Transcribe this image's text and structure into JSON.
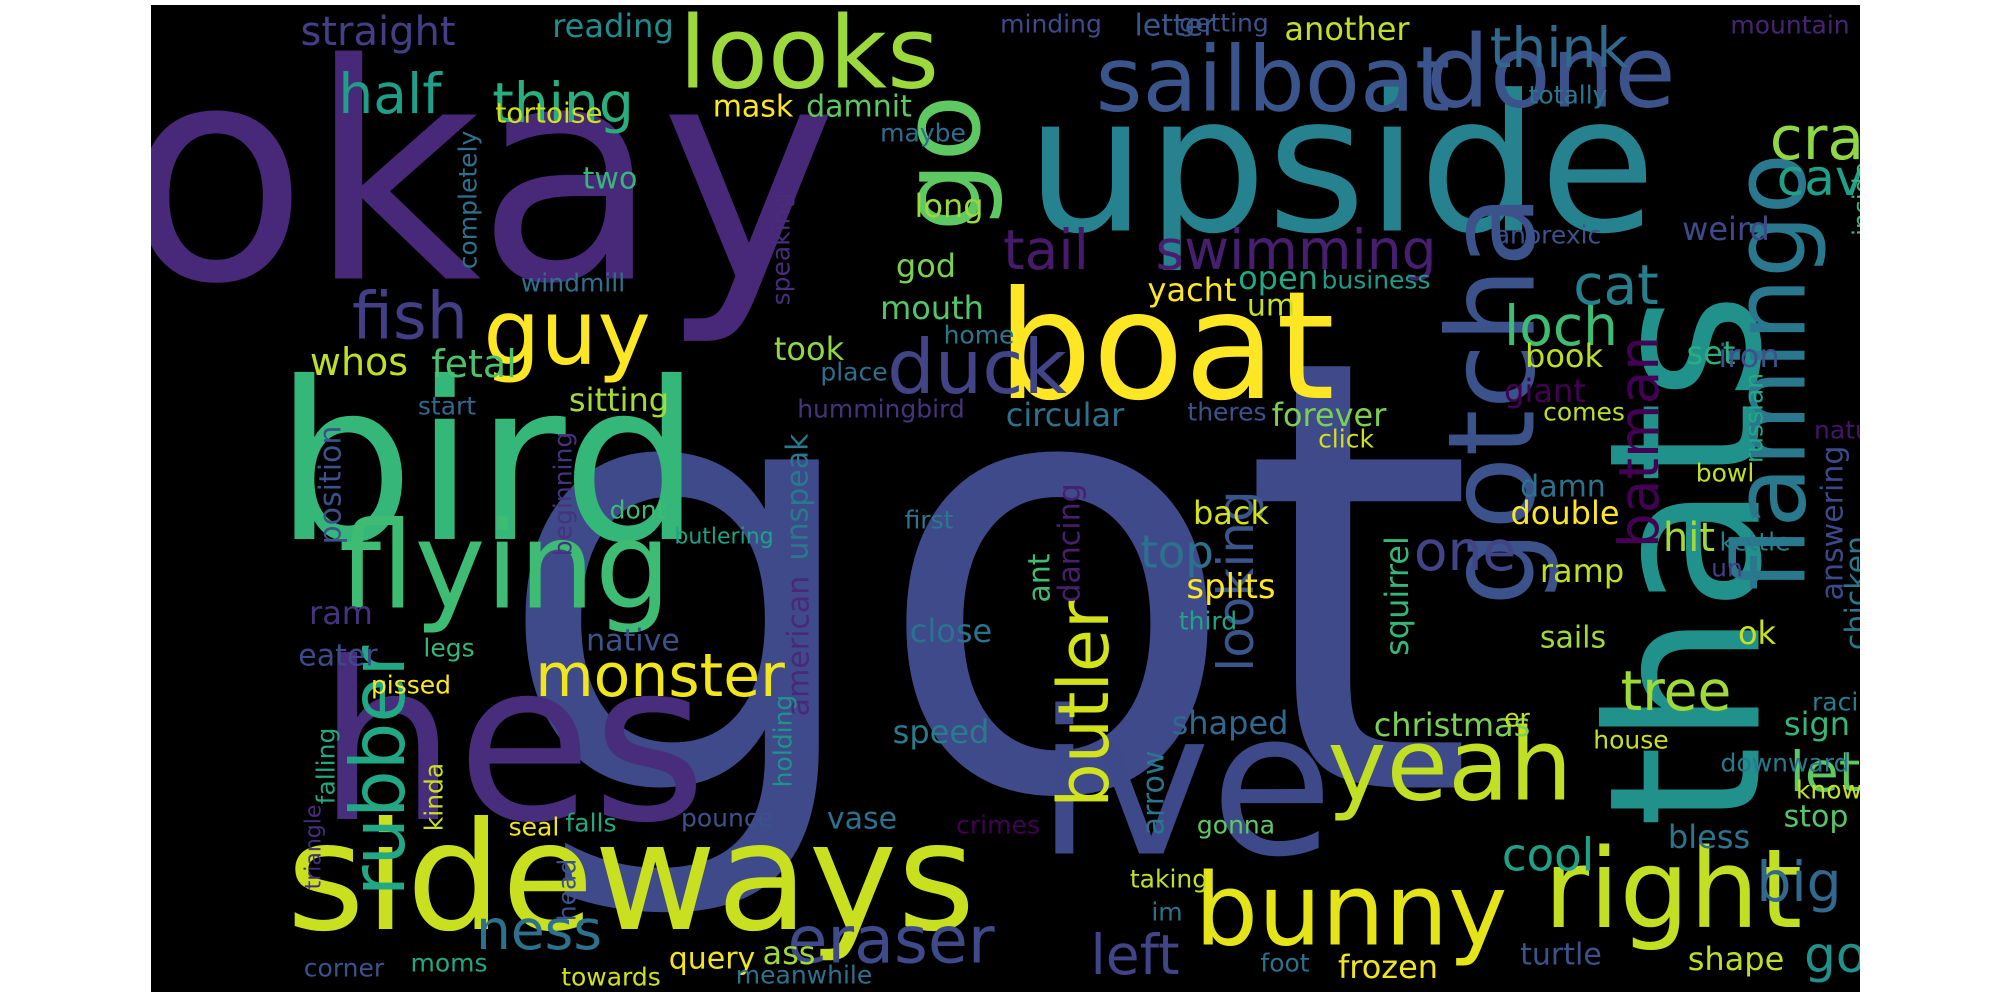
{
  "words": [
    {
      "text": "got",
      "color": "#3e4a89"
    },
    {
      "text": "okay",
      "color": "#482878"
    },
    {
      "text": "upside",
      "color": "#26828e"
    },
    {
      "text": "bird",
      "color": "#35b779"
    },
    {
      "text": "hes",
      "color": "#472d7b"
    },
    {
      "text": "thats",
      "color": "#21918c"
    },
    {
      "text": "ive",
      "color": "#3e4989"
    },
    {
      "text": "sideways",
      "color": "#c8e020"
    },
    {
      "text": "boat",
      "color": "#fde725"
    },
    {
      "text": "flying",
      "color": "#3fbc73"
    },
    {
      "text": "go",
      "color": "#5ec962"
    },
    {
      "text": "gotcha",
      "color": "#3b528b"
    },
    {
      "text": "right",
      "color": "#c2df23"
    },
    {
      "text": "bunny",
      "color": "#e5e419"
    },
    {
      "text": "yeah",
      "color": "#c0df25"
    },
    {
      "text": "looks",
      "color": "#9bd93c"
    },
    {
      "text": "flamingo",
      "color": "#2a788e"
    },
    {
      "text": "sailboat",
      "color": "#3a548c"
    },
    {
      "text": "done",
      "color": "#3b528b"
    },
    {
      "text": "guy",
      "color": "#fde725"
    },
    {
      "text": "duck",
      "color": "#414487"
    },
    {
      "text": "monster",
      "color": "#f1e51d"
    },
    {
      "text": "swimming",
      "color": "#481f70"
    },
    {
      "text": "tail",
      "color": "#481a6c"
    },
    {
      "text": "rubber",
      "color": "#22a884"
    },
    {
      "text": "butler",
      "color": "#d2e21b"
    },
    {
      "text": "eraser",
      "color": "#3e4a89"
    },
    {
      "text": "fish",
      "color": "#433e85"
    },
    {
      "text": "crab",
      "color": "#8fd744"
    },
    {
      "text": "think",
      "color": "#31688e"
    },
    {
      "text": "thing",
      "color": "#29af7f"
    },
    {
      "text": "half",
      "color": "#1f9e89"
    },
    {
      "text": "loch",
      "color": "#3fbc73"
    },
    {
      "text": "cat",
      "color": "#277f8e"
    },
    {
      "text": "batman",
      "color": "#440154"
    },
    {
      "text": "cave",
      "color": "#1fa088"
    },
    {
      "text": "looking",
      "color": "#39558c"
    },
    {
      "text": "tree",
      "color": "#a0da39"
    },
    {
      "text": "ness",
      "color": "#2c728e"
    },
    {
      "text": "left",
      "color": "#414487"
    },
    {
      "text": "let",
      "color": "#5ec962"
    },
    {
      "text": "big",
      "color": "#31688e"
    },
    {
      "text": "going",
      "color": "#21918c"
    },
    {
      "text": "cool",
      "color": "#1fa188"
    },
    {
      "text": "one",
      "color": "#414487"
    },
    {
      "text": "top",
      "color": "#2c728e"
    },
    {
      "text": "hit",
      "color": "#9fda3a"
    },
    {
      "text": "straight",
      "color": "#433e85"
    },
    {
      "text": "reading",
      "color": "#228c8d"
    },
    {
      "text": "another",
      "color": "#c2df23"
    },
    {
      "text": "letter",
      "color": "#38588c"
    },
    {
      "text": "getting",
      "color": "#3b528b"
    },
    {
      "text": "minding",
      "color": "#3e4a89"
    },
    {
      "text": "mountain",
      "color": "#482475"
    },
    {
      "text": "totally",
      "color": "#2a768e"
    },
    {
      "text": "tortoise",
      "color": "#d0e11c"
    },
    {
      "text": "mask",
      "color": "#fde725"
    },
    {
      "text": "damnit",
      "color": "#5ec962"
    },
    {
      "text": "maybe",
      "color": "#2e6e8e"
    },
    {
      "text": "two",
      "color": "#35b779"
    },
    {
      "text": "completely",
      "color": "#2c728e"
    },
    {
      "text": "long",
      "color": "#9bd93c"
    },
    {
      "text": "god",
      "color": "#7ad151"
    },
    {
      "text": "weird",
      "color": "#3e4a89"
    },
    {
      "text": "anorexic",
      "color": "#3b528b"
    },
    {
      "text": "inside",
      "color": "#35b779"
    },
    {
      "text": "speaking",
      "color": "#472d7b"
    },
    {
      "text": "windmill",
      "color": "#2c728e"
    },
    {
      "text": "yacht",
      "color": "#fde725"
    },
    {
      "text": "open",
      "color": "#22a884"
    },
    {
      "text": "business",
      "color": "#1f9a8a"
    },
    {
      "text": "mouth",
      "color": "#54c568"
    },
    {
      "text": "um",
      "color": "#c8e020"
    },
    {
      "text": "whos",
      "color": "#c0df25"
    },
    {
      "text": "fetal",
      "color": "#4ac16d"
    },
    {
      "text": "took",
      "color": "#8fd744"
    },
    {
      "text": "home",
      "color": "#2a768e"
    },
    {
      "text": "book",
      "color": "#bddf26"
    },
    {
      "text": "set",
      "color": "#29af7f"
    },
    {
      "text": "iron",
      "color": "#3b528b"
    },
    {
      "text": "place",
      "color": "#2e6e8e"
    },
    {
      "text": "giant",
      "color": "#440154"
    },
    {
      "text": "start",
      "color": "#31688e"
    },
    {
      "text": "sitting",
      "color": "#a5db36"
    },
    {
      "text": "hummingbird",
      "color": "#46337e"
    },
    {
      "text": "circular",
      "color": "#2c728e"
    },
    {
      "text": "theres",
      "color": "#3b528b"
    },
    {
      "text": "forever",
      "color": "#7ad151"
    },
    {
      "text": "comes",
      "color": "#bddf26"
    },
    {
      "text": "russian",
      "color": "#22a884"
    },
    {
      "text": "nature",
      "color": "#481467"
    },
    {
      "text": "answering",
      "color": "#3e4989"
    },
    {
      "text": "beginning",
      "color": "#46337e"
    },
    {
      "text": "unspeak",
      "color": "#2a788e"
    },
    {
      "text": "click",
      "color": "#d0e11c"
    },
    {
      "text": "bowl",
      "color": "#c2df23"
    },
    {
      "text": "position",
      "color": "#3b528b"
    },
    {
      "text": "dont",
      "color": "#3fbc73"
    },
    {
      "text": "butlering",
      "color": "#1fa188"
    },
    {
      "text": "first",
      "color": "#2a788e"
    },
    {
      "text": "dancing",
      "color": "#481f70"
    },
    {
      "text": "back",
      "color": "#d5e21a"
    },
    {
      "text": "damn",
      "color": "#2c728e"
    },
    {
      "text": "double",
      "color": "#fde725"
    },
    {
      "text": "kettle",
      "color": "#287c8e"
    },
    {
      "text": "un",
      "color": "#433e85"
    },
    {
      "text": "chicken",
      "color": "#2a788e"
    },
    {
      "text": "ram",
      "color": "#46337e"
    },
    {
      "text": "american",
      "color": "#482878"
    },
    {
      "text": "ant",
      "color": "#3fbc73"
    },
    {
      "text": "splits",
      "color": "#fde725"
    },
    {
      "text": "squirrel",
      "color": "#35b779"
    },
    {
      "text": "ramp",
      "color": "#bddf26"
    },
    {
      "text": "third",
      "color": "#20a386"
    },
    {
      "text": "ok",
      "color": "#c8e020"
    },
    {
      "text": "eater",
      "color": "#3e4989"
    },
    {
      "text": "legs",
      "color": "#35b779"
    },
    {
      "text": "native",
      "color": "#3b528b"
    },
    {
      "text": "close",
      "color": "#2c728e"
    },
    {
      "text": "sails",
      "color": "#a0da39"
    },
    {
      "text": "pissed",
      "color": "#fde725"
    },
    {
      "text": "shaped",
      "color": "#31688e"
    },
    {
      "text": "christmas",
      "color": "#7ad151"
    },
    {
      "text": "er",
      "color": "#c2df23"
    },
    {
      "text": "racing",
      "color": "#287c8e"
    },
    {
      "text": "sign",
      "color": "#35b779"
    },
    {
      "text": "falling",
      "color": "#22a884"
    },
    {
      "text": "triangle",
      "color": "#472d7b"
    },
    {
      "text": "kinda",
      "color": "#c8e020"
    },
    {
      "text": "holding",
      "color": "#21918c"
    },
    {
      "text": "speed",
      "color": "#287c8e"
    },
    {
      "text": "arrow",
      "color": "#2a768e"
    },
    {
      "text": "house",
      "color": "#c8e020"
    },
    {
      "text": "downward",
      "color": "#2a788e"
    },
    {
      "text": "know",
      "color": "#c0df25"
    },
    {
      "text": "seal",
      "color": "#f1e51d"
    },
    {
      "text": "falls",
      "color": "#22a884"
    },
    {
      "text": "pounce",
      "color": "#3b528b"
    },
    {
      "text": "vase",
      "color": "#2c728e"
    },
    {
      "text": "crimes",
      "color": "#440154"
    },
    {
      "text": "gonna",
      "color": "#5ec962"
    },
    {
      "text": "bless",
      "color": "#2a768e"
    },
    {
      "text": "stop",
      "color": "#54c568"
    },
    {
      "text": "head",
      "color": "#3b528b"
    },
    {
      "text": "taking",
      "color": "#c0df25"
    },
    {
      "text": "im",
      "color": "#2c728e"
    },
    {
      "text": "query",
      "color": "#f1e51d"
    },
    {
      "text": "ass",
      "color": "#9fda3a"
    },
    {
      "text": "corner",
      "color": "#3b528b"
    },
    {
      "text": "moms",
      "color": "#22a884"
    },
    {
      "text": "towards",
      "color": "#d0e11c"
    },
    {
      "text": "meanwhile",
      "color": "#2c728e"
    },
    {
      "text": "foot",
      "color": "#2c728e"
    },
    {
      "text": "frozen",
      "color": "#f1e51d"
    },
    {
      "text": "turtle",
      "color": "#3b528b"
    },
    {
      "text": "shape",
      "color": "#bddf26"
    }
  ]
}
